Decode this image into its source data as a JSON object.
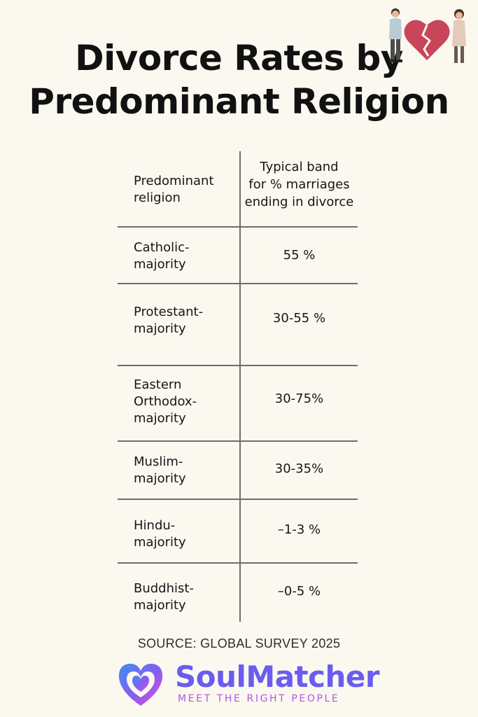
{
  "title": {
    "line1": "Divorce Rates by",
    "line2": "Predominant Religion"
  },
  "chart_data": {
    "type": "table",
    "columns": [
      [
        "Predominant",
        "religion"
      ],
      [
        "Typical band",
        "for % marriages",
        "ending in divorce"
      ]
    ],
    "rows": [
      {
        "religion": [
          "Catholic-",
          "majority"
        ],
        "band": "55 %"
      },
      {
        "religion": [
          "Protestant-",
          "majority"
        ],
        "band": "30-55 %"
      },
      {
        "religion": [
          "Eastern",
          "Orthodox-",
          "majority"
        ],
        "band": "30-75%"
      },
      {
        "religion": [
          "Muslim-",
          "majority"
        ],
        "band": "30-35%"
      },
      {
        "religion": [
          "Hindu-",
          "majority"
        ],
        "band": "–1-3 %"
      },
      {
        "religion": [
          "Buddhist-",
          "majority"
        ],
        "band": "–0-5 %"
      }
    ]
  },
  "source": "SOURCE: GLOBAL SURVEY 2025",
  "brand": {
    "name": "SoulMatcher",
    "tagline": "MEET THE RIGHT PEOPLE"
  },
  "icons": {
    "illustration": "broken-heart-couple-icon",
    "logo": "heart-logo-icon"
  },
  "colors": {
    "background": "#fbf8f0",
    "brand_blue": "#6a5cf0",
    "brand_purple": "#b257e6",
    "heart": "#c8455a"
  }
}
